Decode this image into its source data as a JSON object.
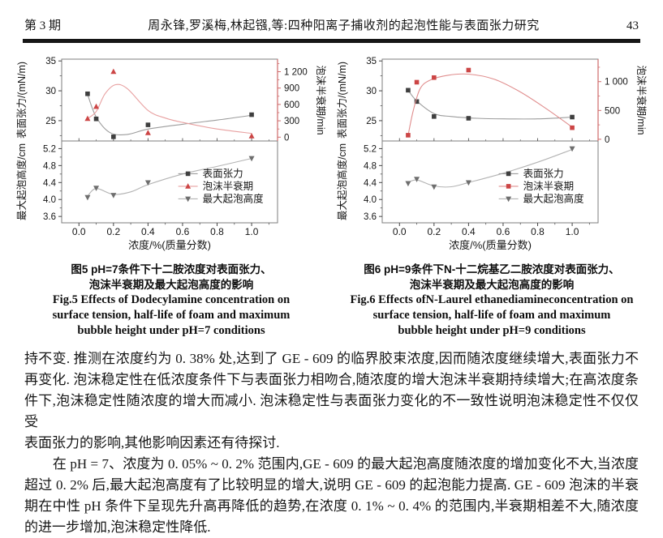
{
  "header": {
    "issue": "第 3 期",
    "running_title": "周永锋,罗溪梅,林起镪,等:四种阳离子捕收剂的起泡性能与表面张力研究",
    "page_number": "43"
  },
  "figures": [
    {
      "caption_cn": [
        "图5  pH=7条件下十二胺浓度对表面张力、",
        "泡沫半衰期及最大起泡高度的影响"
      ],
      "caption_en": [
        "Fig.5  Effects of Dodecylamine concentration on",
        "surface tension, half-life of foam and maximum",
        "bubble height under pH=7 conditions"
      ]
    },
    {
      "caption_cn": [
        "图6  pH=9条件下N-十二烷基乙二胺浓度对表面张力、",
        "泡沫半衰期及最大起泡高度的影响"
      ],
      "caption_en": [
        "Fig.6  Effects ofN-Laurel ethanediamineconcentration on",
        "surface tension, half-life of foam and maximum",
        "bubble height under pH=9 conditions"
      ]
    }
  ],
  "chart_data": [
    {
      "type": "line",
      "title": "图5 pH=7条件下十二胺浓度对表面张力、泡沫半衰期及最大起泡高度的影响",
      "x": {
        "label": "浓度/%(质量分数)",
        "range": [
          -0.1,
          1.15
        ],
        "ticks": [
          0,
          0.2,
          0.4,
          0.6,
          0.8,
          1.0
        ],
        "tick_labels": [
          "0.0",
          "0.2",
          "0.4",
          "0.6",
          "0.8",
          "1.0"
        ],
        "minor_step": 0.1
      },
      "top_left": {
        "label": "表面张力/(mN/m)",
        "range": [
          21.6,
          35.3
        ],
        "ticks": [
          25,
          30,
          35
        ],
        "tick_labels": [
          "25",
          "30",
          "35"
        ],
        "minor_step": 2.5
      },
      "top_right": {
        "label": "泡沫半衰期/min",
        "range": [
          -70,
          1430
        ],
        "ticks": [
          0,
          300,
          600,
          900,
          1200
        ],
        "tick_labels": [
          "0",
          "300",
          "600",
          "900",
          "1 200"
        ],
        "minor_step": 150
      },
      "bottom_left": {
        "label": "最大起泡高度/cm",
        "range": [
          3.45,
          5.38
        ],
        "ticks": [
          3.6,
          4.0,
          4.4,
          4.8,
          5.2
        ],
        "tick_labels": [
          "3.6",
          "4.0",
          "4.4",
          "4.8",
          "5.2"
        ],
        "minor_step": 0.2
      },
      "series": [
        {
          "name": "表面张力",
          "panel": "top",
          "axis": "left",
          "marker": "square",
          "marker_color": "#3f3f3f",
          "line_color": "#9c9c9c",
          "points": [
            [
              0.05,
              29.5
            ],
            [
              0.1,
              25.3
            ],
            [
              0.2,
              22.3
            ],
            [
              0.4,
              24.3
            ],
            [
              1.0,
              26.0
            ]
          ],
          "trend": [
            [
              0.05,
              29.4
            ],
            [
              0.1,
              25.6
            ],
            [
              0.18,
              23.0
            ],
            [
              0.28,
              22.7
            ],
            [
              0.4,
              23.6
            ],
            [
              0.6,
              24.4
            ],
            [
              0.8,
              25.1
            ],
            [
              1.0,
              25.9
            ]
          ]
        },
        {
          "name": "泡沫半衰期",
          "panel": "top",
          "axis": "right",
          "marker": "triangle-up",
          "marker_color": "#cc4545",
          "line_color": "#e8a0a0",
          "points": [
            [
              0.05,
              340
            ],
            [
              0.1,
              560
            ],
            [
              0.2,
              1200
            ],
            [
              0.4,
              80
            ],
            [
              1.0,
              20
            ]
          ],
          "trend": [
            [
              0.05,
              340
            ],
            [
              0.1,
              470
            ],
            [
              0.15,
              790
            ],
            [
              0.21,
              960
            ],
            [
              0.28,
              890
            ],
            [
              0.4,
              490
            ],
            [
              0.5,
              350
            ],
            [
              0.6,
              270
            ],
            [
              0.8,
              150
            ],
            [
              1.0,
              70
            ]
          ]
        },
        {
          "name": "最大起泡高度",
          "panel": "bottom",
          "axis": "left",
          "marker": "triangle-down",
          "marker_color": "#6e6e6e",
          "line_color": "#b3b3b3",
          "points": [
            [
              0.05,
              4.05
            ],
            [
              0.1,
              4.27
            ],
            [
              0.2,
              4.1
            ],
            [
              0.4,
              4.4
            ],
            [
              1.0,
              4.97
            ]
          ],
          "trend": [
            [
              0.05,
              4.08
            ],
            [
              0.1,
              4.26
            ],
            [
              0.2,
              4.12
            ],
            [
              0.3,
              4.18
            ],
            [
              0.4,
              4.35
            ],
            [
              0.6,
              4.6
            ],
            [
              0.8,
              4.78
            ],
            [
              1.0,
              4.97
            ]
          ]
        }
      ]
    },
    {
      "type": "line",
      "title": "图6 pH=9条件下N-十二烷基乙二胺浓度对表面张力、泡沫半衰期及最大起泡高度的影响",
      "x": {
        "label": "浓度/%(质量分数)",
        "range": [
          -0.1,
          1.15
        ],
        "ticks": [
          0,
          0.2,
          0.4,
          0.6,
          0.8,
          1.0
        ],
        "tick_labels": [
          "0.0",
          "0.2",
          "0.4",
          "0.6",
          "0.8",
          "1.0"
        ],
        "minor_step": 0.1
      },
      "top_left": {
        "label": "表面张力/(mN/m)",
        "range": [
          21.6,
          35.3
        ],
        "ticks": [
          25,
          30,
          35
        ],
        "tick_labels": [
          "25",
          "30",
          "35"
        ],
        "minor_step": 2.5
      },
      "top_right": {
        "label": "泡沫半衰期/min",
        "range": [
          -30,
          1390
        ],
        "ticks": [
          0,
          500,
          1000
        ],
        "tick_labels": [
          "0",
          "500",
          "1 000"
        ],
        "minor_step": 250
      },
      "bottom_left": {
        "label": "最大起泡高度/cm",
        "range": [
          3.45,
          5.38
        ],
        "ticks": [
          3.6,
          4.0,
          4.4,
          4.8,
          5.2
        ],
        "tick_labels": [
          "3.6",
          "4.0",
          "4.4",
          "4.8",
          "5.2"
        ],
        "minor_step": 0.2
      },
      "series": [
        {
          "name": "表面张力",
          "panel": "top",
          "axis": "left",
          "marker": "square",
          "marker_color": "#3f3f3f",
          "line_color": "#9c9c9c",
          "points": [
            [
              0.05,
              30.1
            ],
            [
              0.1,
              28.2
            ],
            [
              0.2,
              25.7
            ],
            [
              0.4,
              25.4
            ],
            [
              1.0,
              25.6
            ]
          ],
          "trend": [
            [
              0.05,
              30.1
            ],
            [
              0.1,
              28.3
            ],
            [
              0.2,
              26.2
            ],
            [
              0.3,
              25.7
            ],
            [
              0.45,
              25.4
            ],
            [
              0.6,
              25.3
            ],
            [
              0.8,
              25.3
            ],
            [
              1.0,
              25.6
            ]
          ]
        },
        {
          "name": "泡沫半衰期",
          "panel": "top",
          "axis": "right",
          "marker": "square",
          "marker_color": "#cc4545",
          "line_color": "#e08e8e",
          "points": [
            [
              0.05,
              70
            ],
            [
              0.1,
              990
            ],
            [
              0.2,
              1070
            ],
            [
              0.4,
              1200
            ],
            [
              1.0,
              200
            ]
          ],
          "trend": [
            [
              0.05,
              70
            ],
            [
              0.08,
              500
            ],
            [
              0.12,
              880
            ],
            [
              0.18,
              1030
            ],
            [
              0.28,
              1110
            ],
            [
              0.4,
              1130
            ],
            [
              0.55,
              1040
            ],
            [
              0.7,
              820
            ],
            [
              0.85,
              530
            ],
            [
              1.0,
              210
            ]
          ]
        },
        {
          "name": "最大起泡高度",
          "panel": "bottom",
          "axis": "left",
          "marker": "triangle-down",
          "marker_color": "#6e6e6e",
          "line_color": "#b3b3b3",
          "points": [
            [
              0.05,
              4.38
            ],
            [
              0.1,
              4.48
            ],
            [
              0.2,
              4.3
            ],
            [
              0.4,
              4.4
            ],
            [
              1.0,
              5.2
            ]
          ],
          "trend": [
            [
              0.05,
              4.4
            ],
            [
              0.1,
              4.46
            ],
            [
              0.2,
              4.32
            ],
            [
              0.3,
              4.3
            ],
            [
              0.4,
              4.4
            ],
            [
              0.6,
              4.62
            ],
            [
              0.8,
              4.88
            ],
            [
              1.0,
              5.18
            ]
          ]
        }
      ]
    }
  ],
  "body": {
    "paragraphs": [
      {
        "indent": false,
        "lines": [
          "持不变. 推测在浓度约为 0. 38% 处,达到了 GE - 609 的临界胶束浓度,因而随浓度继续增大,表面张力不",
          "再变化. 泡沫稳定性在低浓度条件下与表面张力相吻合,随浓度的增大泡沫半衰期持续增大;在高浓度条",
          "件下,泡沫稳定性随浓度的增大而减小. 泡沫稳定性与表面张力变化的不一致性说明泡沫稳定性不仅仅受",
          "表面张力的影响,其他影响因素还有待探讨."
        ]
      },
      {
        "indent": true,
        "lines": [
          "在 pH = 7、浓度为 0. 05% ~ 0. 2% 范围内,GE - 609 的最大起泡高度随浓度的增加变化不大,当浓度",
          "超过 0. 2% 后,最大起泡高度有了比较明显的增大,说明 GE - 609 的起泡能力提高. GE - 609 泡沫的半衰",
          "期在中性 pH 条件下呈现先升高再降低的趋势,在浓度 0. 1% ~ 0. 4% 的范围内,半衰期相差不大,随浓度",
          "的进一步增加,泡沫稳定性降低."
        ]
      }
    ]
  },
  "colors": {
    "accent_red": "#cc4545",
    "frame": "#7d7d7d",
    "red_axis": "#cf6a6a"
  }
}
